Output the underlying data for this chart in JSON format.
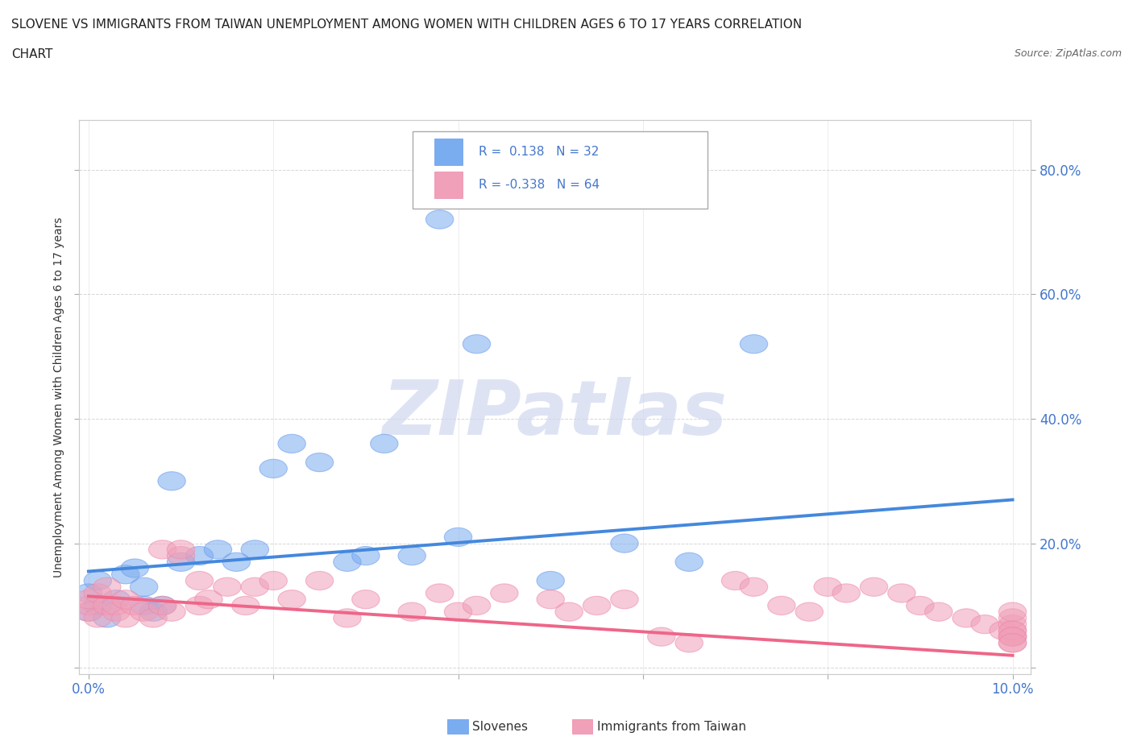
{
  "title_line1": "SLOVENE VS IMMIGRANTS FROM TAIWAN UNEMPLOYMENT AMONG WOMEN WITH CHILDREN AGES 6 TO 17 YEARS CORRELATION",
  "title_line2": "CHART",
  "source_text": "Source: ZipAtlas.com",
  "ylabel": "Unemployment Among Women with Children Ages 6 to 17 years",
  "xlim": [
    -0.001,
    0.102
  ],
  "ylim": [
    -0.01,
    0.88
  ],
  "x_ticks": [
    0.0,
    0.02,
    0.04,
    0.06,
    0.08,
    0.1
  ],
  "x_tick_labels": [
    "0.0%",
    "",
    "",
    "",
    "",
    "10.0%"
  ],
  "y_ticks": [
    0.0,
    0.2,
    0.4,
    0.6,
    0.8
  ],
  "y_tick_labels_right": [
    "",
    "20.0%",
    "40.0%",
    "60.0%",
    "80.0%"
  ],
  "slovene_color": "#7aacf0",
  "taiwan_color": "#f0a0b8",
  "slovene_edge_color": "#6699ee",
  "taiwan_edge_color": "#ee88aa",
  "slovene_trend_color": "#4488dd",
  "taiwan_trend_color": "#ee6688",
  "legend_box_color": "#aaaaaa",
  "legend_text_color": "#4477cc",
  "watermark_color": "#d0d8f0",
  "watermark_text": "ZIPatlas",
  "slovene_points_x": [
    0.0,
    0.0,
    0.001,
    0.001,
    0.002,
    0.003,
    0.004,
    0.005,
    0.006,
    0.006,
    0.007,
    0.008,
    0.009,
    0.01,
    0.012,
    0.014,
    0.016,
    0.018,
    0.02,
    0.022,
    0.025,
    0.028,
    0.03,
    0.032,
    0.035,
    0.038,
    0.04,
    0.042,
    0.05,
    0.058,
    0.065,
    0.072
  ],
  "slovene_points_y": [
    0.09,
    0.12,
    0.1,
    0.14,
    0.08,
    0.11,
    0.15,
    0.16,
    0.1,
    0.13,
    0.09,
    0.1,
    0.3,
    0.17,
    0.18,
    0.19,
    0.17,
    0.19,
    0.32,
    0.36,
    0.33,
    0.17,
    0.18,
    0.36,
    0.18,
    0.72,
    0.21,
    0.52,
    0.14,
    0.2,
    0.17,
    0.52
  ],
  "taiwan_points_x": [
    0.0,
    0.0,
    0.0,
    0.001,
    0.001,
    0.002,
    0.002,
    0.003,
    0.003,
    0.004,
    0.004,
    0.005,
    0.006,
    0.007,
    0.008,
    0.008,
    0.009,
    0.01,
    0.01,
    0.012,
    0.012,
    0.013,
    0.015,
    0.017,
    0.018,
    0.02,
    0.022,
    0.025,
    0.028,
    0.03,
    0.035,
    0.038,
    0.04,
    0.042,
    0.045,
    0.05,
    0.052,
    0.055,
    0.058,
    0.062,
    0.065,
    0.07,
    0.072,
    0.075,
    0.078,
    0.08,
    0.082,
    0.085,
    0.088,
    0.09,
    0.092,
    0.095,
    0.097,
    0.099,
    0.1,
    0.1,
    0.1,
    0.1,
    0.1,
    0.1,
    0.1,
    0.1,
    0.1,
    0.1
  ],
  "taiwan_points_y": [
    0.09,
    0.1,
    0.11,
    0.08,
    0.12,
    0.1,
    0.13,
    0.09,
    0.1,
    0.08,
    0.11,
    0.1,
    0.09,
    0.08,
    0.19,
    0.1,
    0.09,
    0.18,
    0.19,
    0.14,
    0.1,
    0.11,
    0.13,
    0.1,
    0.13,
    0.14,
    0.11,
    0.14,
    0.08,
    0.11,
    0.09,
    0.12,
    0.09,
    0.1,
    0.12,
    0.11,
    0.09,
    0.1,
    0.11,
    0.05,
    0.04,
    0.14,
    0.13,
    0.1,
    0.09,
    0.13,
    0.12,
    0.13,
    0.12,
    0.1,
    0.09,
    0.08,
    0.07,
    0.06,
    0.05,
    0.06,
    0.07,
    0.08,
    0.09,
    0.05,
    0.04,
    0.06,
    0.05,
    0.04
  ],
  "slovene_trend_x": [
    0.0,
    0.1
  ],
  "slovene_trend_y": [
    0.155,
    0.27
  ],
  "taiwan_trend_x": [
    0.0,
    0.1
  ],
  "taiwan_trend_y": [
    0.115,
    0.02
  ],
  "background_color": "#ffffff",
  "grid_color": "#cccccc"
}
